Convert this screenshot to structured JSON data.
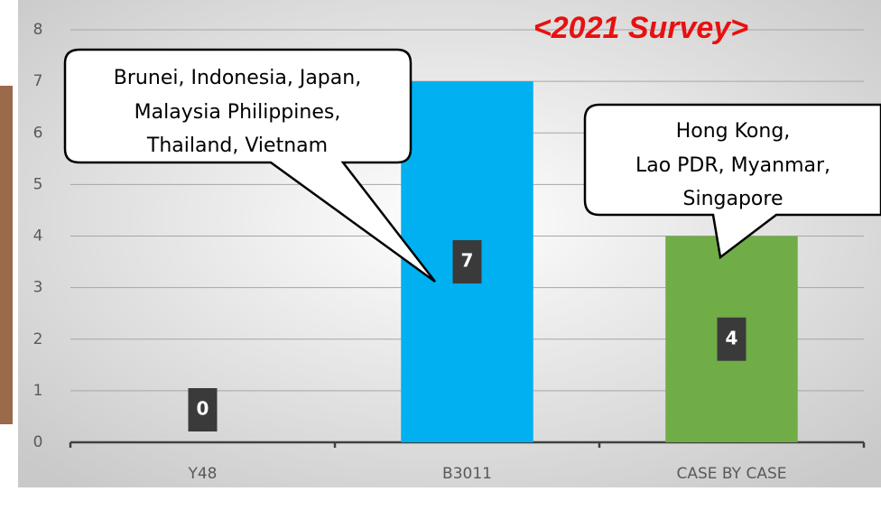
{
  "chart_data": {
    "type": "bar",
    "title": "<2021 Survey>",
    "categories": [
      "Y48",
      "B3011",
      "CASE BY CASE"
    ],
    "values": [
      0,
      7,
      4
    ],
    "colors": [
      "#00b0f0",
      "#00b0f0",
      "#70ad47"
    ],
    "ylim": [
      0,
      8
    ],
    "yticks": [
      0,
      1,
      2,
      3,
      4,
      5,
      6,
      7,
      8
    ],
    "grid": true,
    "annotations": [
      {
        "lines": [
          "Brunei, Indonesia, Japan,",
          "Malaysia Philippines,",
          "Thailand, Vietnam"
        ]
      },
      {
        "lines": [
          "Hong Kong,",
          "Lao PDR, Myanmar,",
          "Singapore"
        ]
      }
    ]
  }
}
